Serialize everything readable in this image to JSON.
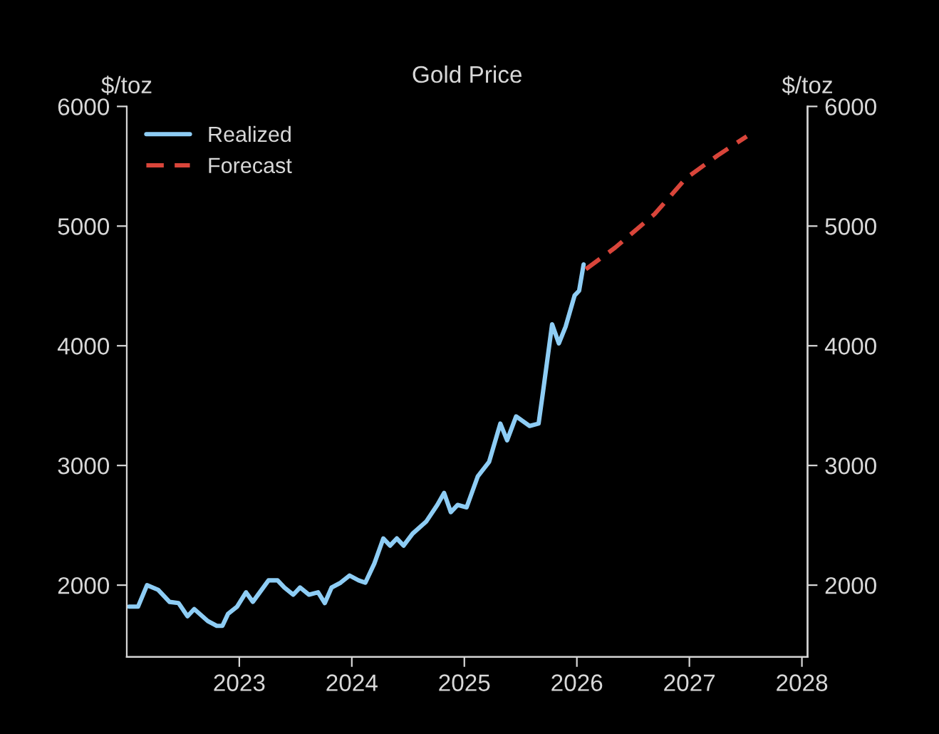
{
  "chart_data": {
    "type": "line",
    "title": "Gold Price",
    "ylabel": "$/toz",
    "y2label": "$/toz",
    "xlim": [
      2022.0,
      2028.05
    ],
    "xticks": [
      2023,
      2024,
      2025,
      2026,
      2027,
      2028
    ],
    "ylim": [
      1400,
      6000
    ],
    "yticks": [
      2000,
      3000,
      4000,
      5000,
      6000
    ],
    "y2lim": [
      1400,
      6000
    ],
    "y2ticks": [
      2000,
      3000,
      4000,
      5000,
      6000
    ],
    "grid": false,
    "legend": "top left",
    "series": [
      {
        "name": "Realized",
        "color": "#8ecdf5",
        "line_style": "solid",
        "x": [
          2022.02,
          2022.1,
          2022.18,
          2022.28,
          2022.38,
          2022.46,
          2022.54,
          2022.6,
          2022.72,
          2022.8,
          2022.85,
          2022.9,
          2022.98,
          2023.06,
          2023.12,
          2023.26,
          2023.34,
          2023.4,
          2023.48,
          2023.54,
          2023.62,
          2023.7,
          2023.76,
          2023.82,
          2023.9,
          2023.98,
          2024.06,
          2024.12,
          2024.2,
          2024.28,
          2024.34,
          2024.4,
          2024.46,
          2024.54,
          2024.66,
          2024.76,
          2024.82,
          2024.88,
          2024.94,
          2025.02,
          2025.12,
          2025.22,
          2025.32,
          2025.38,
          2025.46,
          2025.58,
          2025.66,
          2025.7,
          2025.78,
          2025.84,
          2025.9,
          2025.98,
          2026.02,
          2026.06
        ],
        "values": [
          1820,
          1820,
          2000,
          1960,
          1860,
          1850,
          1740,
          1800,
          1700,
          1660,
          1660,
          1760,
          1820,
          1940,
          1860,
          2040,
          2040,
          1980,
          1920,
          1980,
          1920,
          1940,
          1850,
          1980,
          2020,
          2080,
          2040,
          2020,
          2180,
          2390,
          2330,
          2390,
          2330,
          2430,
          2530,
          2670,
          2770,
          2610,
          2670,
          2650,
          2910,
          3030,
          3350,
          3210,
          3410,
          3330,
          3350,
          3620,
          4180,
          4020,
          4160,
          4420,
          4460,
          4680
        ]
      },
      {
        "name": "Forecast",
        "color": "#d9453a",
        "line_style": "dashed",
        "x": [
          2026.08,
          2026.34,
          2026.69,
          2026.97,
          2027.25,
          2027.51
        ],
        "values": [
          4640,
          4820,
          5100,
          5400,
          5590,
          5750
        ]
      }
    ]
  }
}
